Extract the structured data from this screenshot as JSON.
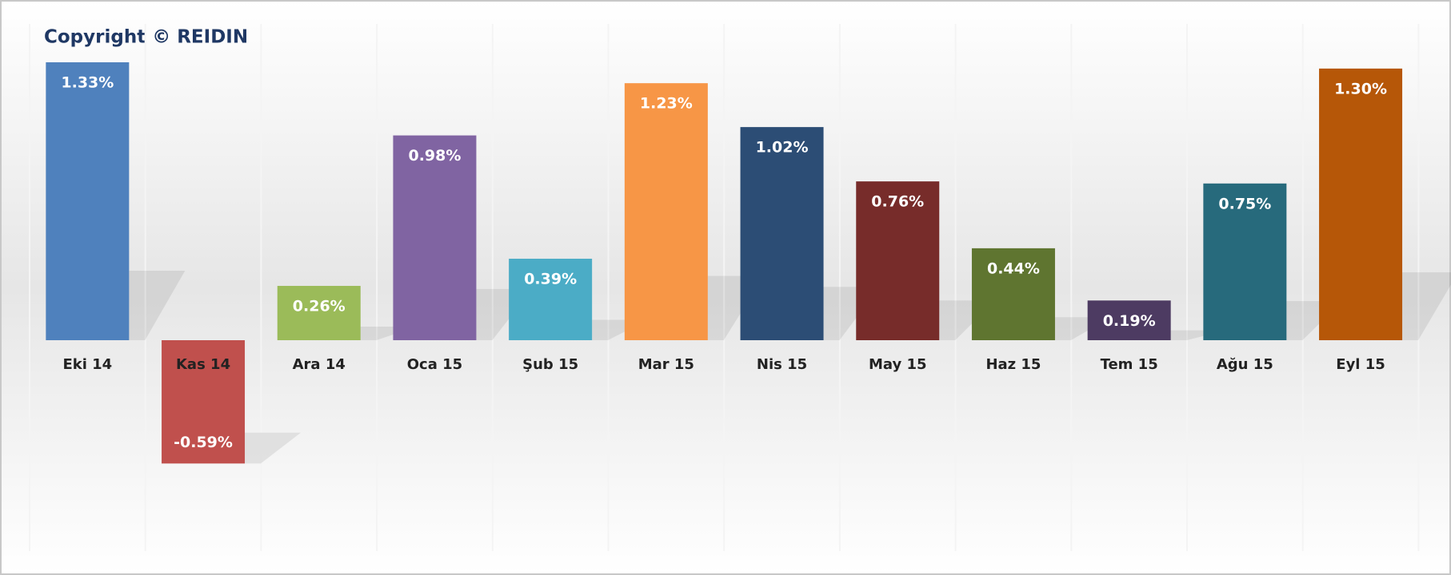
{
  "chart_data": {
    "type": "bar",
    "title": "Copyright © REIDIN",
    "categories": [
      "Eki 14",
      "Kas 14",
      "Ara 14",
      "Oca 15",
      "Şub 15",
      "Mar 15",
      "Nis 15",
      "May 15",
      "Haz 15",
      "Tem 15",
      "Ağu 15",
      "Eyl 15"
    ],
    "values": [
      1.33,
      -0.59,
      0.26,
      0.98,
      0.39,
      1.23,
      1.02,
      0.76,
      0.44,
      0.19,
      0.75,
      1.3
    ],
    "value_labels": [
      "1.33%",
      "-0.59%",
      "0.26%",
      "0.98%",
      "0.39%",
      "1.23%",
      "1.02%",
      "0.76%",
      "0.44%",
      "0.19%",
      "0.75%",
      "1.30%"
    ],
    "colors": [
      "#4f81bd",
      "#c0504d",
      "#9bbb59",
      "#8064a2",
      "#4bacc6",
      "#f79646",
      "#2c4d75",
      "#772c2a",
      "#5f7530",
      "#4d3b62",
      "#276a7c",
      "#b65708"
    ]
  }
}
